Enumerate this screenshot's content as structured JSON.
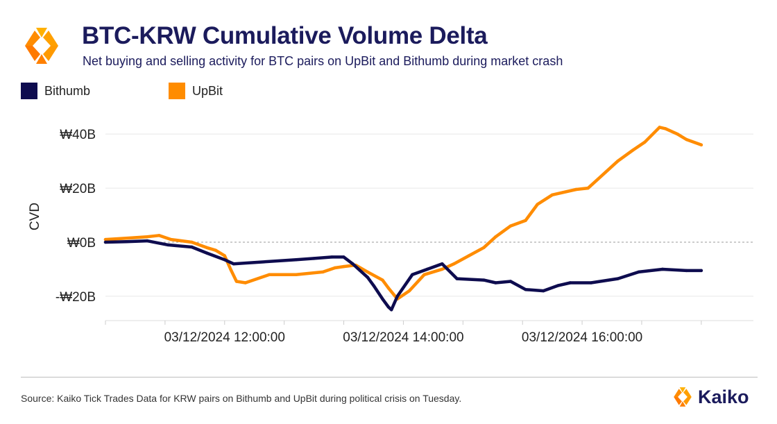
{
  "header": {
    "title": "BTC-KRW Cumulative Volume Delta",
    "subtitle": "Net buying and selling activity for BTC pairs on UpBit and Bithumb during market crash"
  },
  "legend": [
    {
      "label": "Bithumb",
      "color": "#0e0c4f"
    },
    {
      "label": "UpBit",
      "color": "#ff8c00"
    }
  ],
  "footer": {
    "source": "Source: Kaiko Tick Trades Data for KRW pairs on Bithumb and UpBit during political crisis on Tuesday.",
    "brand": "Kaiko"
  },
  "colors": {
    "brand_navy": "#1b1b5c",
    "brand_orange": "#ff8c00",
    "bithumb": "#0e0c4f",
    "upbit": "#ff8c00",
    "grid": "#e8e8e8",
    "zero_line": "#999999"
  },
  "chart_data": {
    "type": "line",
    "title": "BTC-KRW Cumulative Volume Delta",
    "subtitle": "Net buying and selling activity for BTC pairs on UpBit and Bithumb during market crash",
    "ylabel": "CVD",
    "xlabel": "",
    "y_unit": "billion KRW",
    "ylim": [
      -29,
      48
    ],
    "xlim": [
      "03/12/2024 10:40",
      "03/12/2024 17:55"
    ],
    "yticks": [
      40,
      20,
      0,
      -20
    ],
    "ytick_labels": [
      "₩40B",
      "₩20B",
      "₩0B",
      "-₩20B"
    ],
    "xticks": [
      "03/12/2024 10:40",
      "03/12/2024 11:20",
      "03/12/2024 12:00",
      "03/12/2024 12:40",
      "03/12/2024 13:20",
      "03/12/2024 14:00",
      "03/12/2024 14:40",
      "03/12/2024 15:20",
      "03/12/2024 16:00",
      "03/12/2024 16:40",
      "03/12/2024 17:20"
    ],
    "xtick_labels": [
      "",
      "",
      "03/12/2024 12:00:00",
      "",
      "",
      "03/12/2024 14:00:00",
      "",
      "",
      "03/12/2024 16:00:00",
      "",
      ""
    ],
    "grid": "horizontal",
    "zero_line": "dashed",
    "legend_position": "top-left",
    "series": [
      {
        "name": "Bithumb",
        "color": "#0e0c4f",
        "x": [
          "03/12/2024 10:40",
          "03/12/2024 10:54",
          "03/12/2024 11:08",
          "03/12/2024 11:22",
          "03/12/2024 11:38",
          "03/12/2024 11:48",
          "03/12/2024 12:00",
          "03/12/2024 12:06",
          "03/12/2024 12:20",
          "03/12/2024 12:48",
          "03/12/2024 13:00",
          "03/12/2024 13:12",
          "03/12/2024 13:20",
          "03/12/2024 13:26",
          "03/12/2024 13:36",
          "03/12/2024 13:40",
          "03/12/2024 13:46",
          "03/12/2024 13:50",
          "03/12/2024 13:52",
          "03/12/2024 13:56",
          "03/12/2024 14:06",
          "03/12/2024 14:16",
          "03/12/2024 14:26",
          "03/12/2024 14:36",
          "03/12/2024 14:54",
          "03/12/2024 15:02",
          "03/12/2024 15:12",
          "03/12/2024 15:22",
          "03/12/2024 15:34",
          "03/12/2024 15:44",
          "03/12/2024 15:52",
          "03/12/2024 16:06",
          "03/12/2024 16:24",
          "03/12/2024 16:38",
          "03/12/2024 16:54",
          "03/12/2024 17:10",
          "03/12/2024 17:20"
        ],
        "values": [
          0.0,
          0.2,
          0.5,
          -1.0,
          -1.8,
          -4.0,
          -6.5,
          -8.0,
          -7.5,
          -6.5,
          -6.0,
          -5.5,
          -5.5,
          -8.0,
          -13.0,
          -16.0,
          -21.0,
          -24.0,
          -25.0,
          -20.0,
          -12.0,
          -10.0,
          -8.0,
          -13.5,
          -14.0,
          -15.0,
          -14.5,
          -17.5,
          -18.0,
          -16.0,
          -15.0,
          -15.0,
          -13.5,
          -11.0,
          -10.0,
          -10.5,
          -10.5
        ]
      },
      {
        "name": "UpBit",
        "color": "#ff8c00",
        "x": [
          "03/12/2024 10:40",
          "03/12/2024 10:54",
          "03/12/2024 11:08",
          "03/12/2024 11:16",
          "03/12/2024 11:24",
          "03/12/2024 11:38",
          "03/12/2024 11:48",
          "03/12/2024 11:54",
          "03/12/2024 12:00",
          "03/12/2024 12:04",
          "03/12/2024 12:08",
          "03/12/2024 12:14",
          "03/12/2024 12:30",
          "03/12/2024 12:48",
          "03/12/2024 13:06",
          "03/12/2024 13:14",
          "03/12/2024 13:20",
          "03/12/2024 13:28",
          "03/12/2024 13:36",
          "03/12/2024 13:46",
          "03/12/2024 13:50",
          "03/12/2024 13:56",
          "03/12/2024 14:04",
          "03/12/2024 14:14",
          "03/12/2024 14:26",
          "03/12/2024 14:34",
          "03/12/2024 14:44",
          "03/12/2024 14:54",
          "03/12/2024 15:02",
          "03/12/2024 15:12",
          "03/12/2024 15:22",
          "03/12/2024 15:30",
          "03/12/2024 15:40",
          "03/12/2024 15:56",
          "03/12/2024 16:04",
          "03/12/2024 16:16",
          "03/12/2024 16:24",
          "03/12/2024 16:34",
          "03/12/2024 16:42",
          "03/12/2024 16:52",
          "03/12/2024 16:56",
          "03/12/2024 17:04",
          "03/12/2024 17:10",
          "03/12/2024 17:20"
        ],
        "values": [
          1.0,
          1.5,
          2.0,
          2.5,
          1.0,
          0.0,
          -2.0,
          -3.0,
          -5.0,
          -10.0,
          -14.5,
          -15.0,
          -12.0,
          -12.0,
          -11.0,
          -9.5,
          -9.0,
          -8.5,
          -11.0,
          -14.0,
          -17.0,
          -21.0,
          -18.0,
          -12.0,
          -10.0,
          -8.0,
          -5.0,
          -2.0,
          2.0,
          6.0,
          8.0,
          14.0,
          17.5,
          19.5,
          20.0,
          26.0,
          30.0,
          34.0,
          37.0,
          42.5,
          42.0,
          40.0,
          38.0,
          36.0
        ]
      }
    ]
  }
}
